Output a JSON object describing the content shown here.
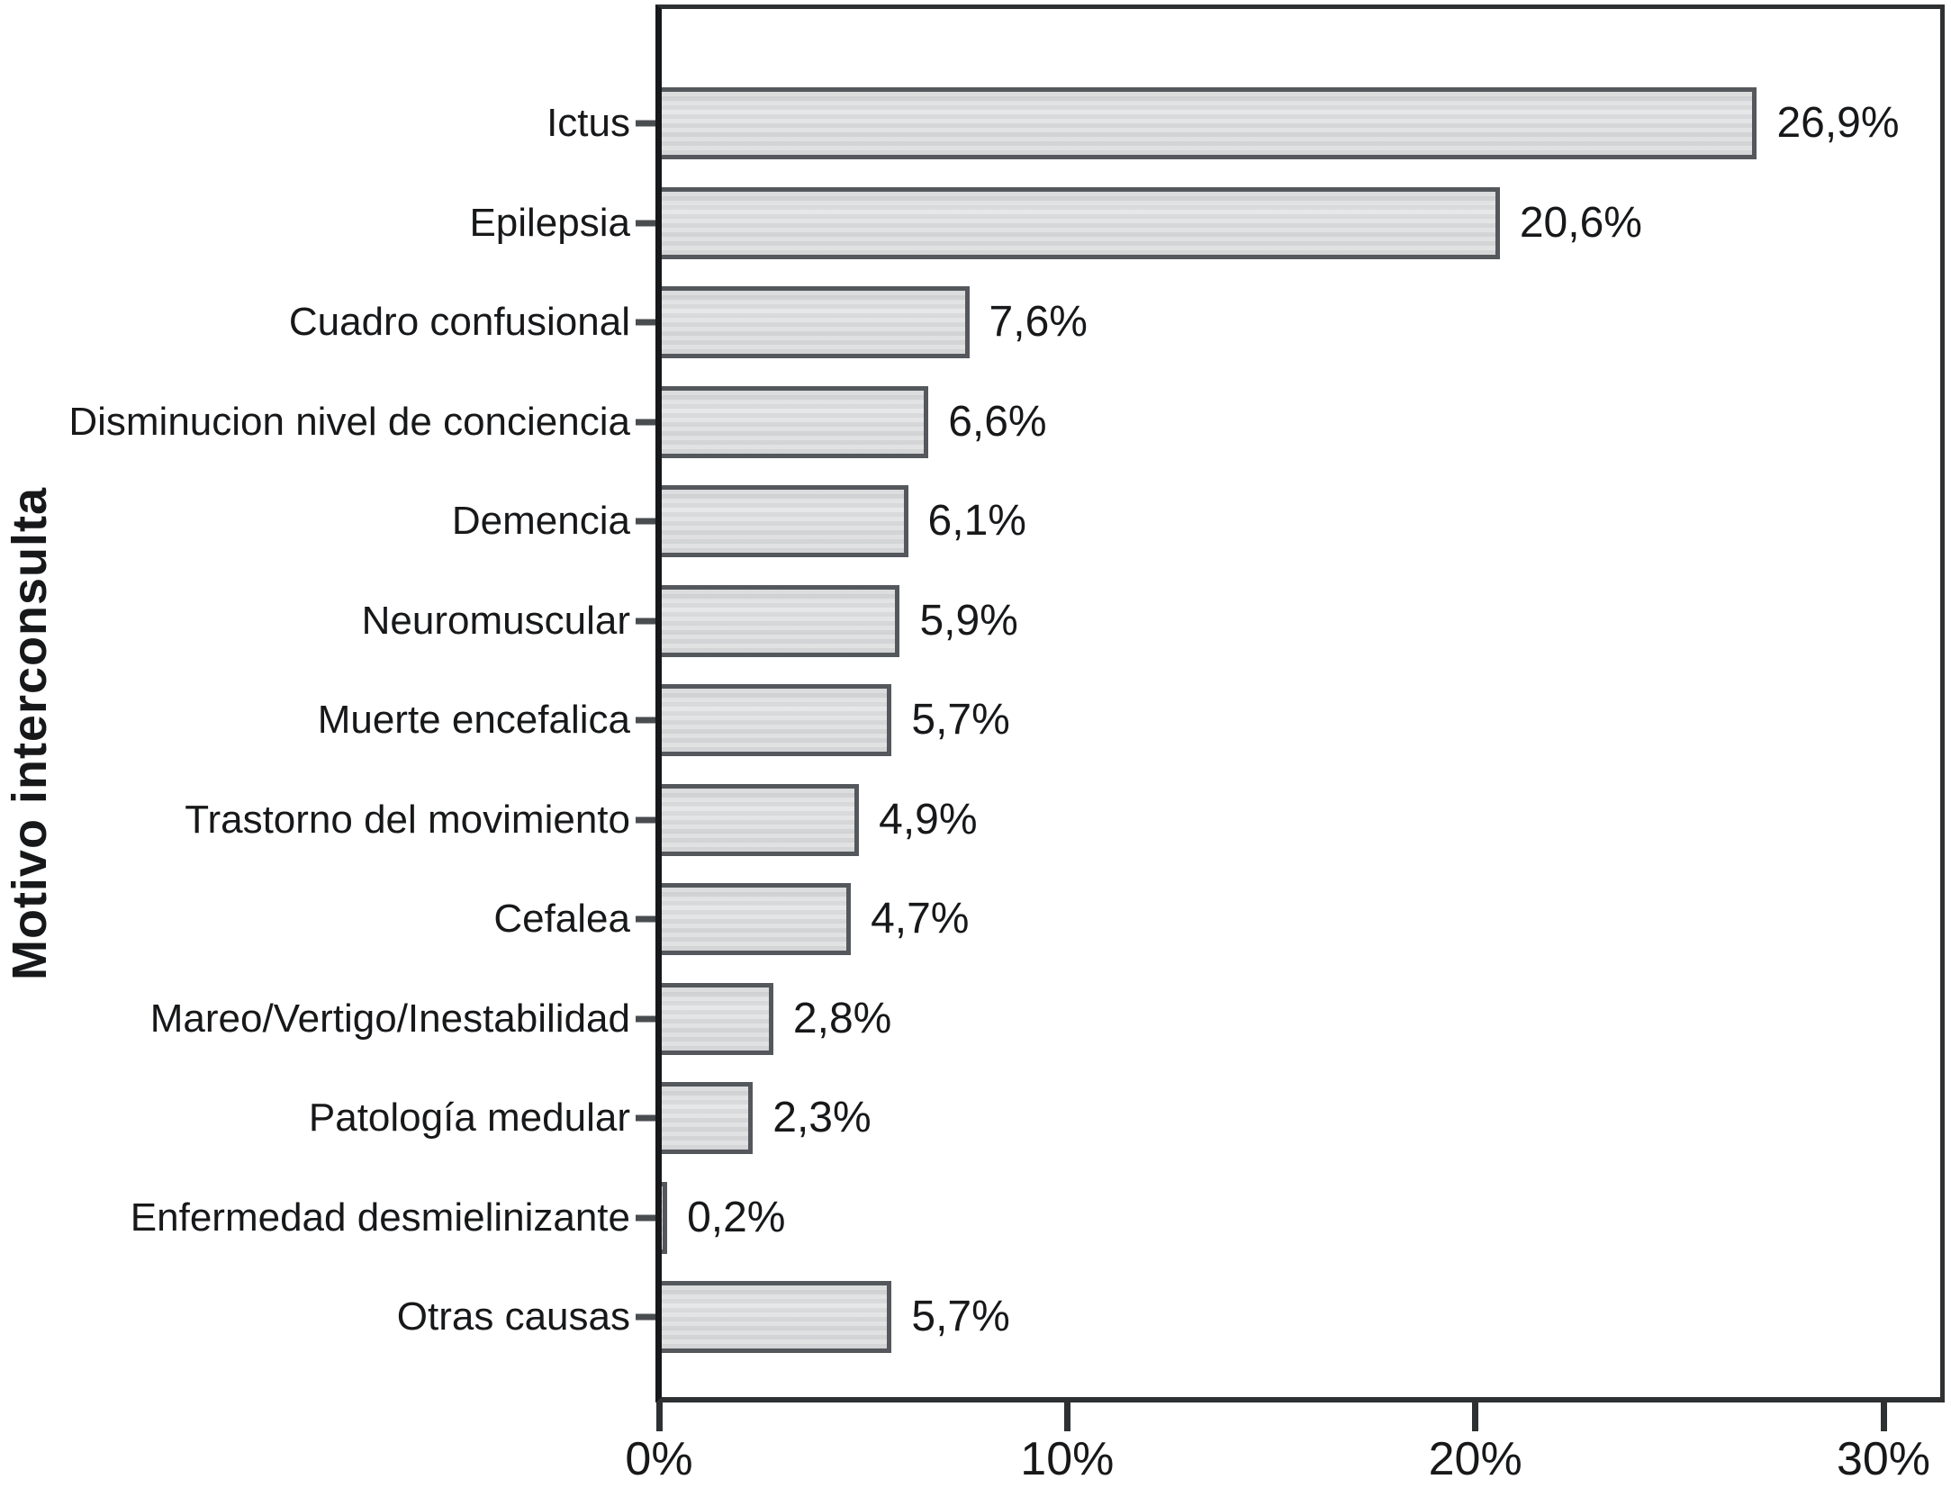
{
  "chart_data": {
    "type": "bar",
    "orientation": "horizontal",
    "title": "",
    "xlabel": "",
    "ylabel": "Motivo interconsulta",
    "categories": [
      "Ictus",
      "Epilepsia",
      "Cuadro confusional",
      "Disminucion nivel de conciencia",
      "Demencia",
      "Neuromuscular",
      "Muerte encefalica",
      "Trastorno del movimiento",
      "Cefalea",
      "Mareo/Vertigo/Inestabilidad",
      "Patología medular",
      "Enfermedad desmielinizante",
      "Otras causas"
    ],
    "values": [
      26.9,
      20.6,
      7.6,
      6.6,
      6.1,
      5.9,
      5.7,
      4.9,
      4.7,
      2.8,
      2.3,
      0.2,
      5.7
    ],
    "value_labels": [
      "26,9%",
      "20,6%",
      "7,6%",
      "6,6%",
      "6,1%",
      "5,9%",
      "5,7%",
      "4,9%",
      "4,7%",
      "2,8%",
      "2,3%",
      "0,2%",
      "5,7%"
    ],
    "x_tick_labels": [
      "0%",
      "10%",
      "20%",
      "30%"
    ],
    "x_tick_values": [
      0,
      10,
      20,
      30
    ],
    "xlim": [
      0,
      31.5
    ],
    "grid": false,
    "legend": null,
    "colors": {
      "bar_fill": "#d9dadb",
      "bar_border": "#54585c",
      "axis": "#2e3032",
      "axis_strong": "#17181a",
      "tick": "#4a4d50",
      "text": "#17181a",
      "background": "#ffffff"
    }
  }
}
